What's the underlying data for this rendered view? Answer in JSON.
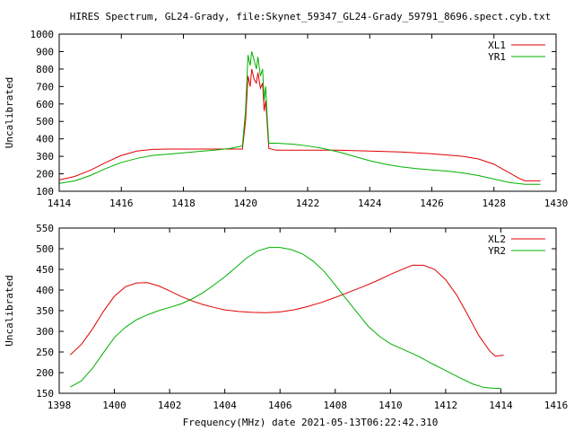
{
  "title": "HIRES Spectrum, GL24-Grady, file:Skynet_59347_GL24-Grady_59791_8696.spect.cyb.txt",
  "xlabel_bottom": "Frequency(MHz) date 2021-05-13T06:22:42.310",
  "colors": {
    "red": "#e00000",
    "green": "#00b000",
    "axis": "#000000"
  },
  "chart_data": [
    {
      "type": "line",
      "id": "top",
      "ylabel": "Uncalibrated",
      "xlim": [
        1414,
        1430
      ],
      "ylim": [
        100,
        1000
      ],
      "xticks": [
        1414,
        1416,
        1418,
        1420,
        1422,
        1424,
        1426,
        1428,
        1430
      ],
      "yticks": [
        100,
        200,
        300,
        400,
        500,
        600,
        700,
        800,
        900,
        1000
      ],
      "legend": "top-right",
      "series": [
        {
          "name": "XL1",
          "color": "#e00000",
          "points": [
            [
              1414.0,
              165
            ],
            [
              1414.5,
              185
            ],
            [
              1415.0,
              220
            ],
            [
              1415.5,
              265
            ],
            [
              1416.0,
              305
            ],
            [
              1416.5,
              330
            ],
            [
              1417.0,
              340
            ],
            [
              1417.5,
              342
            ],
            [
              1418.0,
              342
            ],
            [
              1418.5,
              342
            ],
            [
              1419.0,
              342
            ],
            [
              1419.5,
              342
            ],
            [
              1419.9,
              342
            ],
            [
              1420.0,
              500
            ],
            [
              1420.08,
              760
            ],
            [
              1420.15,
              700
            ],
            [
              1420.2,
              800
            ],
            [
              1420.28,
              740
            ],
            [
              1420.35,
              720
            ],
            [
              1420.4,
              780
            ],
            [
              1420.48,
              690
            ],
            [
              1420.55,
              720
            ],
            [
              1420.6,
              560
            ],
            [
              1420.65,
              620
            ],
            [
              1420.7,
              480
            ],
            [
              1420.75,
              345
            ],
            [
              1421.0,
              335
            ],
            [
              1421.5,
              335
            ],
            [
              1422.0,
              335
            ],
            [
              1423.0,
              335
            ],
            [
              1424.0,
              330
            ],
            [
              1425.0,
              325
            ],
            [
              1426.0,
              315
            ],
            [
              1427.0,
              300
            ],
            [
              1427.5,
              285
            ],
            [
              1428.0,
              255
            ],
            [
              1428.4,
              215
            ],
            [
              1428.8,
              175
            ],
            [
              1429.0,
              160
            ],
            [
              1429.5,
              160
            ]
          ]
        },
        {
          "name": "YR1",
          "color": "#00b000",
          "points": [
            [
              1414.0,
              145
            ],
            [
              1414.5,
              160
            ],
            [
              1415.0,
              190
            ],
            [
              1415.5,
              230
            ],
            [
              1416.0,
              265
            ],
            [
              1416.5,
              288
            ],
            [
              1417.0,
              305
            ],
            [
              1417.5,
              312
            ],
            [
              1418.0,
              320
            ],
            [
              1418.5,
              328
            ],
            [
              1419.0,
              335
            ],
            [
              1419.5,
              345
            ],
            [
              1419.9,
              360
            ],
            [
              1420.0,
              560
            ],
            [
              1420.08,
              880
            ],
            [
              1420.15,
              820
            ],
            [
              1420.2,
              900
            ],
            [
              1420.28,
              850
            ],
            [
              1420.35,
              800
            ],
            [
              1420.4,
              870
            ],
            [
              1420.48,
              760
            ],
            [
              1420.55,
              800
            ],
            [
              1420.6,
              620
            ],
            [
              1420.65,
              700
            ],
            [
              1420.7,
              520
            ],
            [
              1420.75,
              375
            ],
            [
              1421.0,
              375
            ],
            [
              1421.5,
              370
            ],
            [
              1422.0,
              360
            ],
            [
              1422.5,
              345
            ],
            [
              1423.0,
              325
            ],
            [
              1423.5,
              300
            ],
            [
              1424.0,
              275
            ],
            [
              1424.5,
              255
            ],
            [
              1425.0,
              240
            ],
            [
              1425.5,
              230
            ],
            [
              1426.0,
              222
            ],
            [
              1426.5,
              215
            ],
            [
              1427.0,
              205
            ],
            [
              1427.5,
              190
            ],
            [
              1428.0,
              170
            ],
            [
              1428.5,
              150
            ],
            [
              1429.0,
              140
            ],
            [
              1429.5,
              140
            ]
          ]
        }
      ]
    },
    {
      "type": "line",
      "id": "bottom",
      "ylabel": "Uncalibrated",
      "xlabel": "Frequency(MHz) date 2021-05-13T06:22:42.310",
      "xlim": [
        1398,
        1416
      ],
      "ylim": [
        150,
        550
      ],
      "xticks": [
        1398,
        1400,
        1402,
        1404,
        1406,
        1408,
        1410,
        1412,
        1414,
        1416
      ],
      "yticks": [
        150,
        200,
        250,
        300,
        350,
        400,
        450,
        500,
        550
      ],
      "legend": "top-right",
      "series": [
        {
          "name": "XL2",
          "color": "#e00000",
          "points": [
            [
              1398.4,
              243
            ],
            [
              1398.8,
              268
            ],
            [
              1399.2,
              305
            ],
            [
              1399.6,
              348
            ],
            [
              1400.0,
              385
            ],
            [
              1400.4,
              408
            ],
            [
              1400.8,
              417
            ],
            [
              1401.2,
              418
            ],
            [
              1401.6,
              410
            ],
            [
              1402.0,
              398
            ],
            [
              1402.4,
              385
            ],
            [
              1402.8,
              374
            ],
            [
              1403.2,
              365
            ],
            [
              1403.6,
              358
            ],
            [
              1404.0,
              352
            ],
            [
              1404.5,
              348
            ],
            [
              1405.0,
              346
            ],
            [
              1405.5,
              345
            ],
            [
              1406.0,
              347
            ],
            [
              1406.5,
              352
            ],
            [
              1407.0,
              360
            ],
            [
              1407.5,
              370
            ],
            [
              1408.0,
              382
            ],
            [
              1408.5,
              395
            ],
            [
              1409.0,
              408
            ],
            [
              1409.5,
              422
            ],
            [
              1410.0,
              438
            ],
            [
              1410.5,
              452
            ],
            [
              1410.8,
              460
            ],
            [
              1411.2,
              460
            ],
            [
              1411.6,
              450
            ],
            [
              1412.0,
              425
            ],
            [
              1412.4,
              388
            ],
            [
              1412.8,
              340
            ],
            [
              1413.2,
              290
            ],
            [
              1413.6,
              252
            ],
            [
              1413.8,
              240
            ],
            [
              1414.1,
              242
            ]
          ]
        },
        {
          "name": "YR2",
          "color": "#00b000",
          "points": [
            [
              1398.4,
              165
            ],
            [
              1398.8,
              180
            ],
            [
              1399.2,
              210
            ],
            [
              1399.6,
              248
            ],
            [
              1400.0,
              285
            ],
            [
              1400.4,
              310
            ],
            [
              1400.8,
              328
            ],
            [
              1401.2,
              340
            ],
            [
              1401.6,
              350
            ],
            [
              1402.0,
              358
            ],
            [
              1402.4,
              366
            ],
            [
              1402.8,
              378
            ],
            [
              1403.2,
              393
            ],
            [
              1403.6,
              412
            ],
            [
              1404.0,
              432
            ],
            [
              1404.4,
              455
            ],
            [
              1404.8,
              478
            ],
            [
              1405.2,
              495
            ],
            [
              1405.6,
              503
            ],
            [
              1406.0,
              503
            ],
            [
              1406.4,
              498
            ],
            [
              1406.8,
              488
            ],
            [
              1407.2,
              470
            ],
            [
              1407.6,
              445
            ],
            [
              1408.0,
              412
            ],
            [
              1408.4,
              378
            ],
            [
              1408.8,
              345
            ],
            [
              1409.2,
              312
            ],
            [
              1409.6,
              288
            ],
            [
              1410.0,
              270
            ],
            [
              1410.5,
              255
            ],
            [
              1411.0,
              240
            ],
            [
              1411.5,
              222
            ],
            [
              1412.0,
              205
            ],
            [
              1412.5,
              188
            ],
            [
              1413.0,
              172
            ],
            [
              1413.4,
              164
            ],
            [
              1413.8,
              162
            ],
            [
              1414.0,
              162
            ]
          ]
        }
      ]
    }
  ]
}
